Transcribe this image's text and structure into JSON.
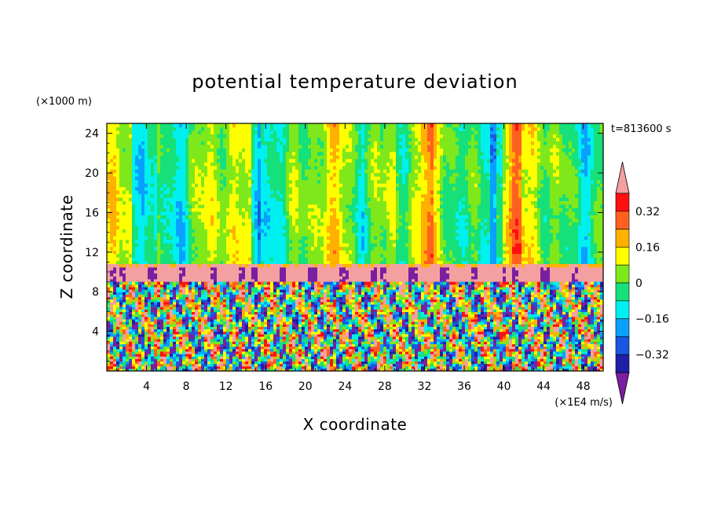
{
  "chart_data": {
    "type": "heatmap",
    "title": "potential temperature deviation",
    "xlabel": "X coordinate",
    "ylabel": "Z coordinate",
    "x_unit": "(×1E4 m/s)",
    "y_unit": "(×1000 m)",
    "time_label": "t=813600 s",
    "xlim": [
      0,
      50
    ],
    "ylim": [
      0,
      25
    ],
    "x_ticks": [
      4,
      8,
      12,
      16,
      20,
      24,
      28,
      32,
      36,
      40,
      44,
      48
    ],
    "x_tick_labels": [
      "4",
      "8",
      "12",
      "16",
      "20",
      "24",
      "28",
      "32",
      "36",
      "40",
      "44",
      "48"
    ],
    "y_ticks": [
      4,
      8,
      12,
      16,
      20,
      24
    ],
    "y_tick_labels": [
      "4",
      "8",
      "12",
      "16",
      "20",
      "24"
    ],
    "colorbar": {
      "levels": [
        -0.4,
        -0.32,
        -0.24,
        -0.16,
        -0.08,
        0,
        0.08,
        0.16,
        0.24,
        0.32,
        0.4
      ],
      "colors": [
        "#7a1fa2",
        "#1f1fa8",
        "#1a56e0",
        "#0aa0ff",
        "#00f0f0",
        "#16e07a",
        "#7fe81a",
        "#ffff00",
        "#ffb000",
        "#ff6020",
        "#ff1010",
        "#f5a0a0"
      ],
      "labeled_values": [
        0.32,
        0.16,
        0,
        -0.16,
        -0.32
      ],
      "labels": [
        "0.32",
        "0.16",
        "0",
        "−0.16",
        "−0.32"
      ],
      "extend": "both"
    },
    "regions": {
      "upper_layer": {
        "z_range": [
          10.8,
          25
        ],
        "typical_range": [
          -0.16,
          0.24
        ],
        "description": "vertically banded, weak deviations"
      },
      "inversion_layer": {
        "z_range": [
          9,
          10.8
        ],
        "value": 0.4,
        "description": "strong positive band with purple intrusions"
      },
      "lower_layer": {
        "z_range": [
          0,
          9
        ],
        "typical_range": [
          -0.4,
          0.4
        ],
        "description": "turbulent convective cells"
      }
    }
  }
}
